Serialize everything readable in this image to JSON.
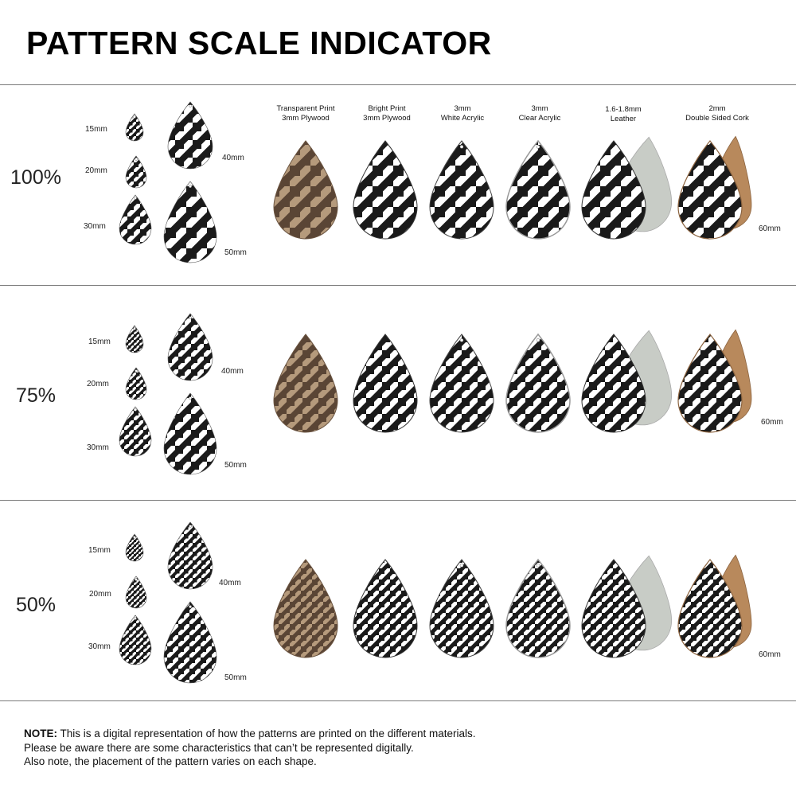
{
  "title": "PATTERN SCALE INDICATOR",
  "materials": [
    {
      "line1": "Transparent Print",
      "line2": "3mm Plywood"
    },
    {
      "line1": "Bright Print",
      "line2": "3mm Plywood"
    },
    {
      "line1": "3mm",
      "line2": "White Acrylic"
    },
    {
      "line1": "3mm",
      "line2": "Clear Acrylic"
    },
    {
      "line1": "1.6-1.8mm",
      "line2": "Leather"
    },
    {
      "line1": "2mm",
      "line2": "Double Sided Cork"
    }
  ],
  "rows": [
    {
      "scale": "100%",
      "sizes": {
        "s15": "15mm",
        "s20": "20mm",
        "s30": "30mm",
        "s40": "40mm",
        "s50": "50mm",
        "s60": "60mm"
      }
    },
    {
      "scale": "75%",
      "sizes": {
        "s15": "15mm",
        "s20": "20mm",
        "s30": "30mm",
        "s40": "40mm",
        "s50": "50mm",
        "s60": "60mm"
      }
    },
    {
      "scale": "50%",
      "sizes": {
        "s15": "15mm",
        "s20": "20mm",
        "s30": "30mm",
        "s40": "40mm",
        "s50": "50mm",
        "s60": "60mm"
      }
    }
  ],
  "note": {
    "label": "NOTE:",
    "line1": " This is a digital representation of how the patterns are printed on the different materials.",
    "line2": "Please be aware there are some characteristics that can’t be represented digitally.",
    "line3": "Also note, the placement of the pattern varies on each shape."
  },
  "colors": {
    "houndstooth_dark": "#1a1a1a",
    "plywood": "#b59a7c",
    "plywood_print": "#5a4535",
    "leather": "#c8ccc6",
    "cork": "#b8895c"
  }
}
